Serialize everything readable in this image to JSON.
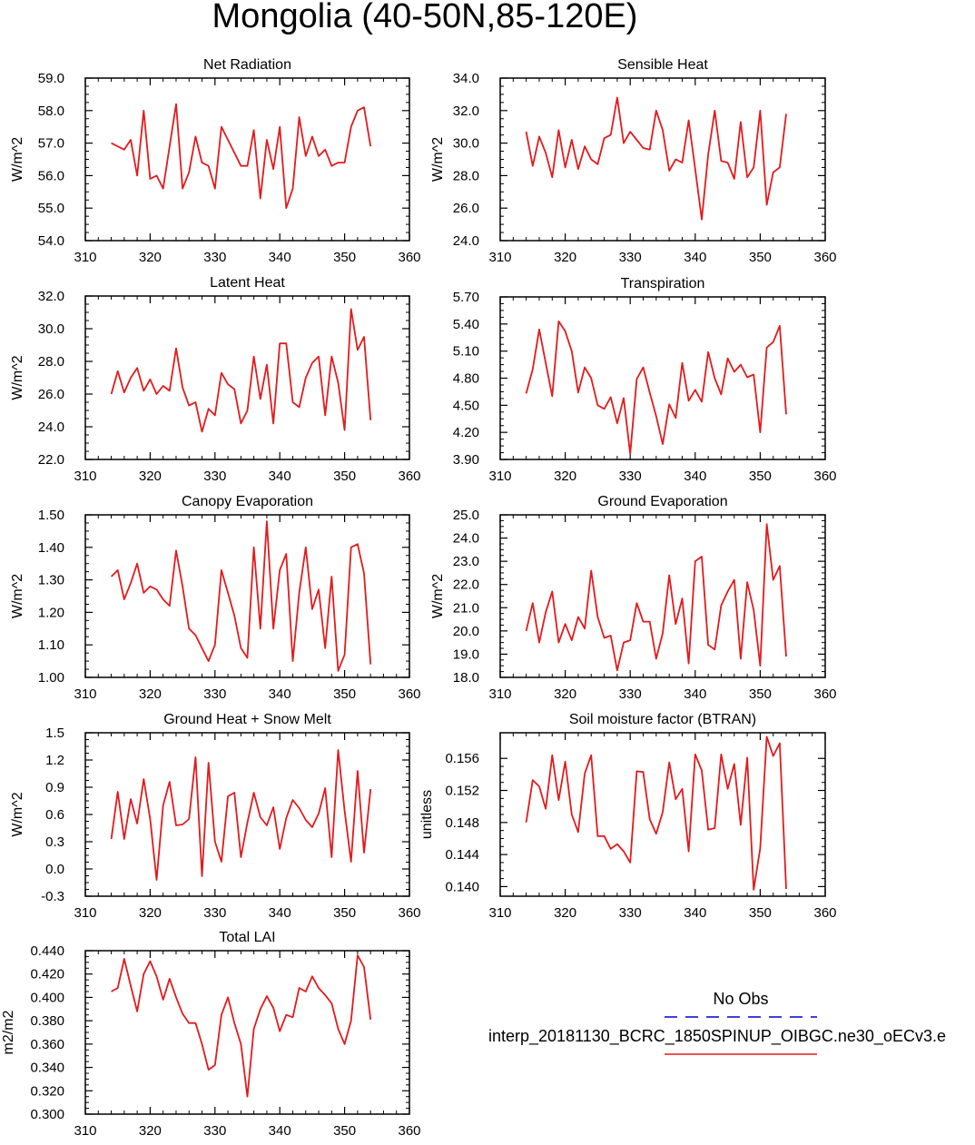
{
  "figure": {
    "title": "Mongolia (40-50N,85-120E)"
  },
  "legend": {
    "obs_label": "No Obs",
    "obs_color": "#0000cc",
    "model_label": "interp_20181130_BCRC_1850SPINUP_OIBGC.ne30_oECv3.e",
    "model_color": "#e31a1c"
  },
  "chart_data": [
    {
      "type": "line",
      "title": "Net Radiation",
      "ylabel": "W/m^2",
      "xlim": [
        310,
        360
      ],
      "ylim": [
        54.0,
        59.0
      ],
      "xticks": [
        310,
        320,
        330,
        340,
        350,
        360
      ],
      "yticks": [
        "54.0",
        "55.0",
        "56.0",
        "57.0",
        "58.0",
        "59.0"
      ],
      "x": [
        314,
        315,
        316,
        317,
        318,
        319,
        320,
        321,
        322,
        323,
        324,
        325,
        326,
        327,
        328,
        329,
        330,
        331,
        332,
        333,
        334,
        335,
        336,
        337,
        338,
        339,
        340,
        341,
        342,
        343,
        344,
        345,
        346,
        347,
        348,
        349,
        350,
        351,
        352,
        353,
        354
      ],
      "series": [
        {
          "values": [
            57.0,
            56.9,
            56.8,
            57.1,
            56.0,
            58.0,
            55.9,
            56.0,
            55.6,
            56.9,
            58.2,
            55.6,
            56.1,
            57.2,
            56.4,
            56.3,
            55.6,
            57.5,
            57.1,
            56.7,
            56.3,
            56.3,
            57.4,
            55.3,
            57.1,
            56.2,
            57.5,
            55.0,
            55.6,
            57.8,
            56.6,
            57.2,
            56.6,
            56.8,
            56.3,
            56.4,
            56.4,
            57.5,
            58.0,
            58.1,
            56.9
          ]
        }
      ]
    },
    {
      "type": "line",
      "title": "Sensible Heat",
      "ylabel": "W/m^2",
      "xlim": [
        310,
        360
      ],
      "ylim": [
        24.0,
        34.0
      ],
      "xticks": [
        310,
        320,
        330,
        340,
        350,
        360
      ],
      "yticks": [
        "24.0",
        "26.0",
        "28.0",
        "30.0",
        "32.0",
        "34.0"
      ],
      "x": [
        314,
        315,
        316,
        317,
        318,
        319,
        320,
        321,
        322,
        323,
        324,
        325,
        326,
        327,
        328,
        329,
        330,
        331,
        332,
        333,
        334,
        335,
        336,
        337,
        338,
        339,
        340,
        341,
        342,
        343,
        344,
        345,
        346,
        347,
        348,
        349,
        350,
        351,
        352,
        353,
        354
      ],
      "series": [
        {
          "values": [
            30.7,
            28.6,
            30.4,
            29.4,
            27.9,
            30.8,
            28.5,
            30.2,
            28.4,
            29.8,
            29.0,
            28.7,
            30.3,
            30.5,
            32.8,
            30.0,
            30.7,
            30.2,
            29.7,
            29.6,
            32.0,
            30.8,
            28.3,
            29.0,
            28.8,
            31.4,
            28.4,
            25.3,
            29.3,
            32.0,
            28.9,
            28.8,
            27.8,
            31.3,
            27.9,
            28.5,
            32.0,
            26.2,
            28.2,
            28.5,
            31.8
          ]
        }
      ]
    },
    {
      "type": "line",
      "title": "Latent Heat",
      "ylabel": "W/m^2",
      "xlim": [
        310,
        360
      ],
      "ylim": [
        22.0,
        32.0
      ],
      "xticks": [
        310,
        320,
        330,
        340,
        350,
        360
      ],
      "yticks": [
        "22.0",
        "24.0",
        "26.0",
        "28.0",
        "30.0",
        "32.0"
      ],
      "x": [
        314,
        315,
        316,
        317,
        318,
        319,
        320,
        321,
        322,
        323,
        324,
        325,
        326,
        327,
        328,
        329,
        330,
        331,
        332,
        333,
        334,
        335,
        336,
        337,
        338,
        339,
        340,
        341,
        342,
        343,
        344,
        345,
        346,
        347,
        348,
        349,
        350,
        351,
        352,
        353,
        354
      ],
      "series": [
        {
          "values": [
            26.0,
            27.4,
            26.1,
            27.0,
            27.6,
            26.2,
            26.9,
            26.0,
            26.5,
            26.2,
            28.8,
            26.4,
            25.3,
            25.5,
            23.7,
            25.1,
            24.7,
            27.3,
            26.6,
            26.3,
            24.2,
            25.0,
            28.3,
            25.7,
            27.8,
            24.2,
            29.1,
            29.1,
            25.5,
            25.2,
            27.0,
            27.9,
            28.3,
            24.7,
            28.3,
            26.7,
            23.8,
            31.2,
            28.7,
            29.5,
            24.4
          ]
        }
      ]
    },
    {
      "type": "line",
      "title": "Transpiration",
      "ylabel": "",
      "xlim": [
        310,
        360
      ],
      "ylim": [
        3.9,
        5.7
      ],
      "xticks": [
        310,
        320,
        330,
        340,
        350,
        360
      ],
      "yticks": [
        "3.90",
        "4.20",
        "4.50",
        "4.80",
        "5.10",
        "5.40",
        "5.70"
      ],
      "x": [
        314,
        315,
        316,
        317,
        318,
        319,
        320,
        321,
        322,
        323,
        324,
        325,
        326,
        327,
        328,
        329,
        330,
        331,
        332,
        333,
        334,
        335,
        336,
        337,
        338,
        339,
        340,
        341,
        342,
        343,
        344,
        345,
        346,
        347,
        348,
        349,
        350,
        351,
        352,
        353,
        354
      ],
      "series": [
        {
          "values": [
            4.63,
            4.9,
            5.34,
            4.97,
            4.6,
            5.43,
            5.32,
            5.1,
            4.64,
            4.92,
            4.8,
            4.5,
            4.46,
            4.59,
            4.3,
            4.58,
            3.96,
            4.79,
            4.92,
            4.64,
            4.38,
            4.07,
            4.51,
            4.36,
            4.97,
            4.55,
            4.67,
            4.54,
            5.09,
            4.8,
            4.62,
            5.02,
            4.87,
            4.95,
            4.81,
            4.84,
            4.2,
            5.14,
            5.2,
            5.38,
            4.4
          ]
        }
      ]
    },
    {
      "type": "line",
      "title": "Canopy Evaporation",
      "ylabel": "W/m^2",
      "xlim": [
        310,
        360
      ],
      "ylim": [
        1.0,
        1.5
      ],
      "xticks": [
        310,
        320,
        330,
        340,
        350,
        360
      ],
      "yticks": [
        "1.00",
        "1.10",
        "1.20",
        "1.30",
        "1.40",
        "1.50"
      ],
      "x": [
        314,
        315,
        316,
        317,
        318,
        319,
        320,
        321,
        322,
        323,
        324,
        325,
        326,
        327,
        328,
        329,
        330,
        331,
        332,
        333,
        334,
        335,
        336,
        337,
        338,
        339,
        340,
        341,
        342,
        343,
        344,
        345,
        346,
        347,
        348,
        349,
        350,
        351,
        352,
        353,
        354
      ],
      "series": [
        {
          "values": [
            1.31,
            1.33,
            1.24,
            1.29,
            1.35,
            1.26,
            1.28,
            1.27,
            1.24,
            1.22,
            1.39,
            1.28,
            1.15,
            1.13,
            1.09,
            1.05,
            1.1,
            1.33,
            1.26,
            1.19,
            1.09,
            1.06,
            1.4,
            1.15,
            1.48,
            1.15,
            1.33,
            1.38,
            1.05,
            1.26,
            1.4,
            1.21,
            1.27,
            1.09,
            1.31,
            1.02,
            1.07,
            1.4,
            1.41,
            1.32,
            1.04
          ]
        }
      ]
    },
    {
      "type": "line",
      "title": "Ground Evaporation",
      "ylabel": "W/m^2",
      "xlim": [
        310,
        360
      ],
      "ylim": [
        18.0,
        25.0
      ],
      "xticks": [
        310,
        320,
        330,
        340,
        350,
        360
      ],
      "yticks": [
        "18.0",
        "19.0",
        "20.0",
        "21.0",
        "22.0",
        "23.0",
        "24.0",
        "25.0"
      ],
      "x": [
        314,
        315,
        316,
        317,
        318,
        319,
        320,
        321,
        322,
        323,
        324,
        325,
        326,
        327,
        328,
        329,
        330,
        331,
        332,
        333,
        334,
        335,
        336,
        337,
        338,
        339,
        340,
        341,
        342,
        343,
        344,
        345,
        346,
        347,
        348,
        349,
        350,
        351,
        352,
        353,
        354
      ],
      "series": [
        {
          "values": [
            20.0,
            21.2,
            19.5,
            20.8,
            21.7,
            19.5,
            20.3,
            19.6,
            20.6,
            20.1,
            22.6,
            20.6,
            19.7,
            19.8,
            18.3,
            19.5,
            19.6,
            21.2,
            20.4,
            20.4,
            18.8,
            19.9,
            22.4,
            20.3,
            21.4,
            18.6,
            23.0,
            23.2,
            19.4,
            19.2,
            21.1,
            21.7,
            22.2,
            18.8,
            22.1,
            20.9,
            18.5,
            24.6,
            22.2,
            22.8,
            18.9
          ]
        }
      ]
    },
    {
      "type": "line",
      "title": "Ground Heat + Snow Melt",
      "ylabel": "W/m^2",
      "xlim": [
        310,
        360
      ],
      "ylim": [
        -0.3,
        1.5
      ],
      "xticks": [
        310,
        320,
        330,
        340,
        350,
        360
      ],
      "yticks": [
        "-0.3",
        "0.0",
        "0.3",
        "0.6",
        "0.9",
        "1.2",
        "1.5"
      ],
      "x": [
        314,
        315,
        316,
        317,
        318,
        319,
        320,
        321,
        322,
        323,
        324,
        325,
        326,
        327,
        328,
        329,
        330,
        331,
        332,
        333,
        334,
        335,
        336,
        337,
        338,
        339,
        340,
        341,
        342,
        343,
        344,
        345,
        346,
        347,
        348,
        349,
        350,
        351,
        352,
        353,
        354
      ],
      "series": [
        {
          "values": [
            0.33,
            0.85,
            0.33,
            0.77,
            0.5,
            0.99,
            0.55,
            -0.12,
            0.7,
            0.96,
            0.48,
            0.49,
            0.55,
            1.23,
            -0.08,
            1.17,
            0.3,
            0.08,
            0.8,
            0.84,
            0.13,
            0.51,
            0.84,
            0.57,
            0.48,
            0.68,
            0.22,
            0.56,
            0.76,
            0.67,
            0.54,
            0.46,
            0.61,
            0.89,
            0.13,
            1.31,
            0.64,
            0.08,
            1.08,
            0.18,
            0.88
          ]
        }
      ]
    },
    {
      "type": "line",
      "title": "Soil moisture factor (BTRAN)",
      "ylabel": "unitless",
      "xlim": [
        310,
        360
      ],
      "ylim": [
        0.1388,
        0.1592
      ],
      "xticks": [
        310,
        320,
        330,
        340,
        350,
        360
      ],
      "yticks": [
        "0.140",
        "0.144",
        "0.148",
        "0.152",
        "0.156"
      ],
      "x": [
        314,
        315,
        316,
        317,
        318,
        319,
        320,
        321,
        322,
        323,
        324,
        325,
        326,
        327,
        328,
        329,
        330,
        331,
        332,
        333,
        334,
        335,
        336,
        337,
        338,
        339,
        340,
        341,
        342,
        343,
        344,
        345,
        346,
        347,
        348,
        349,
        350,
        351,
        352,
        353,
        354
      ],
      "series": [
        {
          "values": [
            0.148,
            0.1533,
            0.1525,
            0.1497,
            0.1564,
            0.1508,
            0.1556,
            0.149,
            0.1468,
            0.1541,
            0.1564,
            0.1463,
            0.1463,
            0.1447,
            0.1453,
            0.1444,
            0.143,
            0.1544,
            0.1543,
            0.1484,
            0.1466,
            0.1493,
            0.1555,
            0.1509,
            0.1522,
            0.1444,
            0.1565,
            0.1545,
            0.1471,
            0.1473,
            0.1565,
            0.1522,
            0.1553,
            0.1477,
            0.1561,
            0.1396,
            0.1448,
            0.1587,
            0.1563,
            0.1579,
            0.1397
          ]
        }
      ]
    },
    {
      "type": "line",
      "title": "Total LAI",
      "ylabel": "m2/m2",
      "xlim": [
        310,
        360
      ],
      "ylim": [
        0.3,
        0.44
      ],
      "xticks": [
        310,
        320,
        330,
        340,
        350,
        360
      ],
      "yticks": [
        "0.300",
        "0.320",
        "0.340",
        "0.360",
        "0.380",
        "0.400",
        "0.420",
        "0.440"
      ],
      "x": [
        314,
        315,
        316,
        317,
        318,
        319,
        320,
        321,
        322,
        323,
        324,
        325,
        326,
        327,
        328,
        329,
        330,
        331,
        332,
        333,
        334,
        335,
        336,
        337,
        338,
        339,
        340,
        341,
        342,
        343,
        344,
        345,
        346,
        347,
        348,
        349,
        350,
        351,
        352,
        353,
        354
      ],
      "series": [
        {
          "values": [
            0.405,
            0.408,
            0.433,
            0.41,
            0.388,
            0.42,
            0.431,
            0.418,
            0.398,
            0.416,
            0.4,
            0.386,
            0.378,
            0.378,
            0.36,
            0.338,
            0.342,
            0.385,
            0.4,
            0.378,
            0.36,
            0.315,
            0.373,
            0.39,
            0.401,
            0.391,
            0.371,
            0.385,
            0.383,
            0.408,
            0.405,
            0.418,
            0.408,
            0.402,
            0.395,
            0.373,
            0.36,
            0.38,
            0.436,
            0.426,
            0.381
          ]
        }
      ]
    }
  ]
}
